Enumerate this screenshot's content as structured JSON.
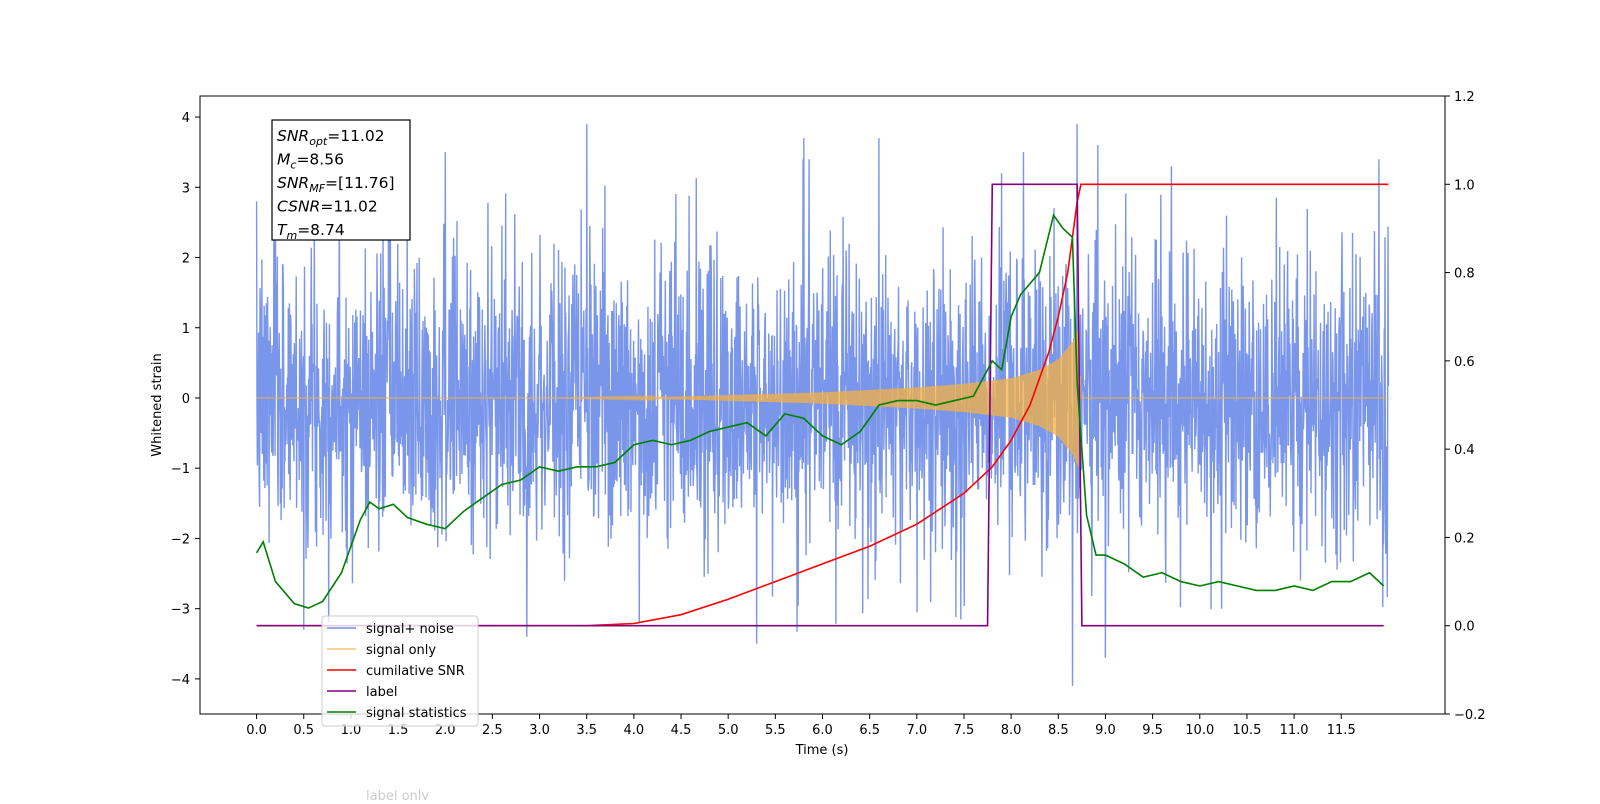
{
  "chart_data": {
    "type": "line",
    "xlabel": "Time (s)",
    "ylabel": "Whitened strain",
    "xlim": [
      -0.6,
      12.6
    ],
    "ylim_left": [
      -4.5,
      4.3
    ],
    "ylim_right": [
      -0.2,
      1.2
    ],
    "x_ticks": [
      0.0,
      0.5,
      1.0,
      1.5,
      2.0,
      2.5,
      3.0,
      3.5,
      4.0,
      4.5,
      5.0,
      5.5,
      6.0,
      6.5,
      7.0,
      7.5,
      8.0,
      8.5,
      9.0,
      9.5,
      10.0,
      10.5,
      11.0,
      11.5
    ],
    "x_tick_labels": [
      "0.0",
      "0.5",
      "1.0",
      "1.5",
      "2.0",
      "2.5",
      "3.0",
      "3.5",
      "4.0",
      "4.5",
      "5.0",
      "5.5",
      "6.0",
      "6.5",
      "7.0",
      "7.5",
      "8.0",
      "8.5",
      "9.0",
      "9.5",
      "10.0",
      "10.5",
      "11.0",
      "11.5"
    ],
    "y_left_ticks": [
      4,
      3,
      2,
      1,
      0,
      -1,
      -2,
      -3,
      -4
    ],
    "y_left_tick_labels": [
      "4",
      "3",
      "2",
      "1",
      "0",
      "−1",
      "−2",
      "−3",
      "−4"
    ],
    "y_right_ticks": [
      1.2,
      1.0,
      0.8,
      0.6,
      0.4,
      0.2,
      0.0,
      -0.2
    ],
    "y_right_tick_labels": [
      "1.2",
      "1.0",
      "0.8",
      "0.6",
      "0.4",
      "0.2",
      "0.0",
      "−0.2"
    ],
    "grid": false,
    "legend_position": "lower-left",
    "annotation": {
      "lines": [
        {
          "base": "SNR",
          "sub": "opt",
          "value": "=11.02"
        },
        {
          "base": "M",
          "sub": "c",
          "value": "=8.56"
        },
        {
          "base": "SNR",
          "sub": "MF",
          "value": "=[11.76]"
        },
        {
          "base": "CSNR",
          "sub": "",
          "value": "=11.02"
        },
        {
          "base": "T",
          "sub": "m",
          "value": "=8.74"
        }
      ]
    },
    "series": [
      {
        "name": "signal+ noise",
        "color": "#4169e1",
        "axis": "left",
        "kind": "noise",
        "x_range": [
          0.0,
          12.0
        ],
        "amplitude_typical": 1.3,
        "peaks": [
          [
            0.2,
            2.4
          ],
          [
            0.5,
            -3.3
          ],
          [
            1.4,
            3.5
          ],
          [
            2.0,
            3.5
          ],
          [
            3.5,
            3.9
          ],
          [
            5.3,
            -3.5
          ],
          [
            5.8,
            3.7
          ],
          [
            6.6,
            3.7
          ],
          [
            7.9,
            3.2
          ],
          [
            8.13,
            3.5
          ],
          [
            8.7,
            3.9
          ],
          [
            8.65,
            -4.1
          ],
          [
            8.92,
            3.6
          ],
          [
            9.0,
            -3.7
          ],
          [
            9.7,
            3.3
          ],
          [
            11.9,
            3.4
          ]
        ]
      },
      {
        "name": "signal only",
        "color": "#f5b041",
        "axis": "left",
        "kind": "chirp",
        "x_range": [
          0.0,
          8.74
        ],
        "envelope": [
          [
            3.0,
            0.0
          ],
          [
            4.5,
            0.02
          ],
          [
            6.0,
            0.08
          ],
          [
            7.0,
            0.15
          ],
          [
            7.5,
            0.2
          ],
          [
            8.0,
            0.28
          ],
          [
            8.3,
            0.4
          ],
          [
            8.5,
            0.55
          ],
          [
            8.65,
            0.8
          ],
          [
            8.72,
            1.0
          ],
          [
            8.74,
            0.0
          ]
        ]
      },
      {
        "name": "cumilative SNR",
        "color": "#ff0000",
        "axis": "right",
        "x": [
          0.0,
          3.5,
          4.0,
          4.5,
          5.0,
          5.5,
          6.0,
          6.5,
          7.0,
          7.5,
          7.8,
          8.0,
          8.2,
          8.4,
          8.5,
          8.6,
          8.65,
          8.7,
          8.74,
          12.0
        ],
        "y": [
          0.0,
          0.0,
          0.005,
          0.025,
          0.06,
          0.1,
          0.14,
          0.18,
          0.23,
          0.3,
          0.36,
          0.42,
          0.5,
          0.62,
          0.7,
          0.8,
          0.88,
          0.96,
          1.0,
          1.0
        ]
      },
      {
        "name": "label",
        "color": "#800080",
        "axis": "right",
        "x": [
          0.0,
          7.75,
          7.8,
          8.7,
          8.75,
          11.95
        ],
        "y": [
          0.0,
          0.0,
          1.0,
          1.0,
          0.0,
          0.0
        ]
      },
      {
        "name": "label only",
        "color": "#cccccc",
        "axis": "right",
        "x": [
          0.0,
          11.95
        ],
        "y": [
          0.0,
          0.0
        ]
      },
      {
        "name": "signal statistics",
        "color": "#008000",
        "axis": "right",
        "x": [
          0.0,
          0.07,
          0.2,
          0.4,
          0.55,
          0.7,
          0.9,
          1.1,
          1.2,
          1.3,
          1.45,
          1.6,
          1.8,
          2.0,
          2.2,
          2.4,
          2.6,
          2.8,
          3.0,
          3.2,
          3.4,
          3.6,
          3.8,
          4.0,
          4.2,
          4.4,
          4.6,
          4.8,
          5.0,
          5.2,
          5.4,
          5.6,
          5.8,
          6.0,
          6.2,
          6.4,
          6.6,
          6.8,
          7.0,
          7.2,
          7.4,
          7.6,
          7.8,
          7.9,
          8.0,
          8.1,
          8.3,
          8.45,
          8.55,
          8.65,
          8.7,
          8.8,
          8.9,
          9.0,
          9.2,
          9.4,
          9.6,
          9.8,
          10.0,
          10.2,
          10.4,
          10.6,
          10.8,
          11.0,
          11.2,
          11.4,
          11.6,
          11.8,
          11.95
        ],
        "y": [
          0.165,
          0.19,
          0.1,
          0.05,
          0.04,
          0.055,
          0.12,
          0.24,
          0.28,
          0.265,
          0.275,
          0.245,
          0.23,
          0.22,
          0.26,
          0.29,
          0.32,
          0.33,
          0.36,
          0.35,
          0.36,
          0.36,
          0.37,
          0.41,
          0.42,
          0.41,
          0.42,
          0.44,
          0.45,
          0.46,
          0.43,
          0.48,
          0.47,
          0.43,
          0.41,
          0.44,
          0.5,
          0.51,
          0.51,
          0.5,
          0.51,
          0.52,
          0.6,
          0.58,
          0.7,
          0.75,
          0.8,
          0.93,
          0.9,
          0.88,
          0.55,
          0.25,
          0.16,
          0.16,
          0.14,
          0.11,
          0.12,
          0.1,
          0.09,
          0.1,
          0.09,
          0.08,
          0.08,
          0.09,
          0.08,
          0.1,
          0.1,
          0.12,
          0.09
        ]
      }
    ]
  }
}
